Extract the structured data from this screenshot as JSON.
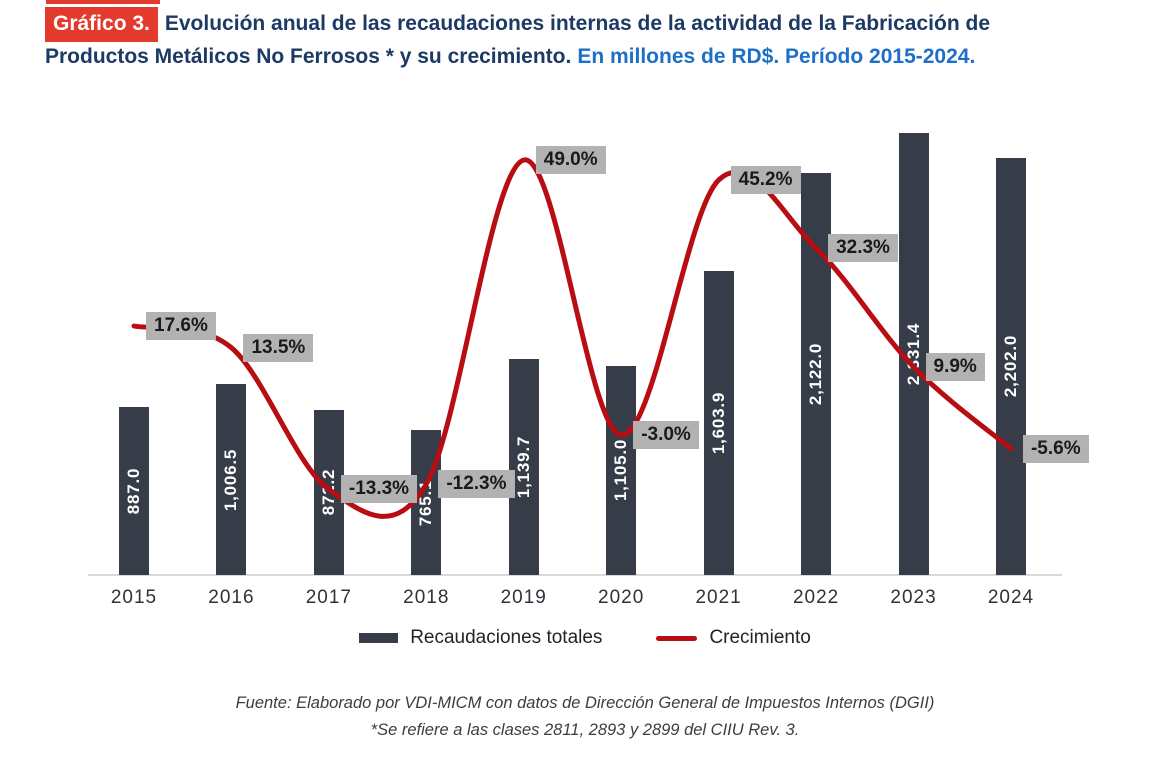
{
  "title": {
    "tag": "Gráfico 3.",
    "line1_dark": "Evolución anual de las recaudaciones internas de la actividad de la Fabricación de",
    "line2_dark": "Productos Metálicos No Ferrosos * y su crecimiento.",
    "line2_blue": "En millones de RD$. Período 2015-2024."
  },
  "chart_data": {
    "type": "bar",
    "subtype": "combo-bar-line",
    "title": "Evolución anual de las recaudaciones internas de la actividad de la Fabricación de Productos Metálicos No Ferrosos y su crecimiento",
    "units": "millones de RD$",
    "categories": [
      "2015",
      "2016",
      "2017",
      "2018",
      "2019",
      "2020",
      "2021",
      "2022",
      "2023",
      "2024"
    ],
    "series": [
      {
        "name": "Recaudaciones totales",
        "type": "bar",
        "color": "#363c48",
        "values": [
          887.0,
          1006.5,
          872.2,
          765.1,
          1139.7,
          1105.0,
          1603.9,
          2122.0,
          2331.4,
          2202.0
        ],
        "value_labels": [
          "887.0",
          "1,006.5",
          "872.2",
          "765.1",
          "1,139.7",
          "1,105.0",
          "1,603.9",
          "2,122.0",
          "2,331.4",
          "2,202.0"
        ]
      },
      {
        "name": "Crecimiento",
        "type": "line",
        "color": "#b80d12",
        "values": [
          17.6,
          13.5,
          -13.3,
          -12.3,
          49.0,
          -3.0,
          45.2,
          32.3,
          9.9,
          -5.6
        ],
        "value_labels": [
          "17.6%",
          "13.5%",
          "-13.3%",
          "-12.3%",
          "49.0%",
          "-3.0%",
          "45.2%",
          "32.3%",
          "9.9%",
          "-5.6%"
        ]
      }
    ],
    "legend_position": "bottom",
    "grid": false,
    "y_axis_visible": false
  },
  "footer": {
    "source": "Fuente: Elaborado por VDI-MICM con datos de Dirección General de Impuestos Internos (DGII)",
    "note": "*Se refiere a las clases 2811, 2893 y 2899 del CIIU Rev. 3."
  },
  "colors": {
    "navy": "#1c3a64",
    "blue": "#1d6fc8",
    "tag_red": "#e23b2e",
    "bar": "#363c48",
    "line_red": "#b80d12",
    "label_box": "#b2b2b2"
  }
}
